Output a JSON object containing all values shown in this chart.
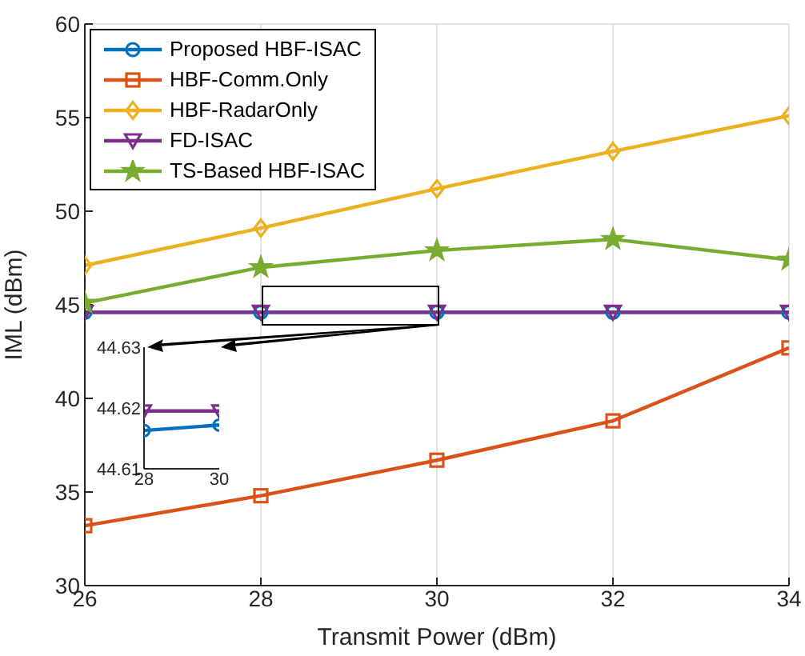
{
  "chart_data": [
    {
      "type": "line",
      "xlabel": "Transmit Power (dBm)",
      "ylabel": "IML (dBm)",
      "x": [
        26,
        28,
        30,
        32,
        34
      ],
      "xlim": [
        26,
        34
      ],
      "xticks": [
        26,
        28,
        30,
        32,
        34
      ],
      "ylim": [
        30,
        60
      ],
      "yticks": [
        30,
        35,
        40,
        45,
        50,
        55,
        60
      ],
      "grid": true,
      "legend": "top left",
      "series": [
        {
          "name": "Proposed HBF-ISAC",
          "color": "#0072bd",
          "marker": "circle",
          "values": [
            44.6,
            44.6,
            44.6,
            44.6,
            44.6
          ]
        },
        {
          "name": "HBF-Comm.Only",
          "color": "#d95319",
          "marker": "square",
          "values": [
            33.2,
            34.8,
            36.7,
            38.8,
            42.7
          ]
        },
        {
          "name": "HBF-RadarOnly",
          "color": "#edb120",
          "marker": "diamond",
          "values": [
            47.1,
            49.1,
            51.2,
            53.2,
            55.1
          ]
        },
        {
          "name": "FD-ISAC",
          "color": "#7e2f8e",
          "marker": "triangle",
          "values": [
            44.6,
            44.6,
            44.6,
            44.6,
            44.6
          ]
        },
        {
          "name": "TS-Based HBF-ISAC",
          "color": "#77ac30",
          "marker": "star",
          "values": [
            45.1,
            47.0,
            47.9,
            48.5,
            47.4
          ]
        }
      ]
    },
    {
      "type": "line",
      "x": [
        28,
        30
      ],
      "xlim": [
        28,
        30
      ],
      "xticks": [
        28,
        30
      ],
      "ylim": [
        44.61,
        44.63
      ],
      "yticks": [
        44.61,
        44.62,
        44.63
      ],
      "grid": false,
      "legend": false,
      "series": [
        {
          "color": "#0072bd",
          "marker": "circle",
          "values": [
            44.6163,
            44.6172
          ]
        },
        {
          "color": "#7e2f8e",
          "marker": "triangle",
          "values": [
            44.6195,
            44.6195
          ]
        }
      ]
    }
  ]
}
